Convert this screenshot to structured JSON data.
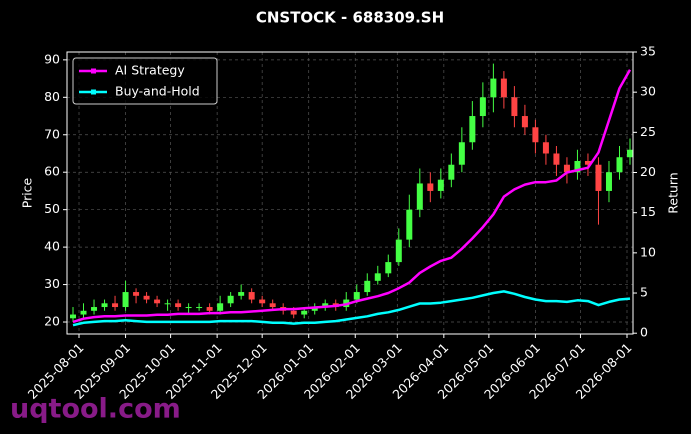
{
  "chart_data": {
    "type": "candlestick",
    "title": "CNSTOCK - 688309.SH",
    "watermark": "uqtool.com",
    "ylabel": "Price",
    "y2label": "Return",
    "x": [
      "2025-07-28",
      "2025-08-04",
      "2025-08-11",
      "2025-08-18",
      "2025-08-25",
      "2025-09-01",
      "2025-09-08",
      "2025-09-15",
      "2025-09-22",
      "2025-09-29",
      "2025-10-06",
      "2025-10-13",
      "2025-10-20",
      "2025-10-27",
      "2025-11-03",
      "2025-11-10",
      "2025-11-17",
      "2025-11-24",
      "2025-12-01",
      "2025-12-08",
      "2025-12-15",
      "2025-12-22",
      "2025-12-29",
      "2026-01-05",
      "2026-01-12",
      "2026-01-19",
      "2026-01-26",
      "2026-02-02",
      "2026-02-09",
      "2026-02-16",
      "2026-02-23",
      "2026-03-02",
      "2026-03-09",
      "2026-03-16",
      "2026-03-23",
      "2026-03-30",
      "2026-04-06",
      "2026-04-13",
      "2026-04-20",
      "2026-04-27",
      "2026-05-04",
      "2026-05-11",
      "2026-05-18",
      "2026-05-25",
      "2026-06-01",
      "2026-06-08",
      "2026-06-15",
      "2026-06-22",
      "2026-06-29",
      "2026-07-06",
      "2026-07-13",
      "2026-07-20",
      "2026-07-27",
      "2026-08-03"
    ],
    "open": [
      21,
      22,
      23,
      24,
      25,
      24,
      28,
      27,
      26,
      25,
      25,
      24,
      24,
      24,
      23,
      25,
      27,
      28,
      26,
      25,
      24,
      23,
      22,
      23,
      24,
      25,
      24,
      26,
      28,
      31,
      33,
      36,
      42,
      50,
      57,
      55,
      58,
      62,
      68,
      75,
      80,
      85,
      80,
      75,
      72,
      68,
      65,
      62,
      60,
      63,
      62,
      55,
      60,
      64
    ],
    "high": [
      24,
      25,
      26,
      26,
      27,
      31,
      29,
      28,
      27,
      26,
      26,
      25,
      25,
      25,
      27,
      28,
      30,
      29,
      27,
      26,
      25,
      24,
      24,
      25,
      26,
      26,
      28,
      30,
      33,
      35,
      38,
      45,
      54,
      61,
      60,
      61,
      65,
      72,
      79,
      84,
      89,
      87,
      83,
      78,
      74,
      70,
      67,
      64,
      66,
      65,
      64,
      63,
      67,
      69
    ],
    "low": [
      20,
      21,
      22,
      23,
      23,
      23,
      25,
      25,
      24,
      23,
      23,
      22,
      23,
      22,
      22,
      24,
      26,
      25,
      24,
      23,
      22,
      21,
      21,
      22,
      23,
      23,
      23,
      25,
      27,
      30,
      32,
      35,
      40,
      48,
      52,
      53,
      56,
      60,
      66,
      72,
      76,
      77,
      72,
      70,
      65,
      62,
      59,
      57,
      58,
      59,
      46,
      52,
      58,
      62
    ],
    "close": [
      22,
      23,
      24,
      25,
      24,
      28,
      27,
      26,
      25,
      25,
      24,
      24,
      24,
      23,
      25,
      27,
      28,
      26,
      25,
      24,
      23,
      22,
      23,
      24,
      25,
      24,
      26,
      28,
      31,
      33,
      36,
      42,
      50,
      57,
      55,
      58,
      62,
      68,
      75,
      80,
      85,
      80,
      75,
      72,
      68,
      65,
      62,
      60,
      63,
      62,
      55,
      60,
      64,
      66
    ],
    "up_color": "#44ff44",
    "down_color": "#ff4444",
    "series": [
      {
        "name": "AI Strategy",
        "color": "#ff00ff",
        "axis": "y2",
        "values": [
          1.4,
          1.8,
          2.0,
          2.1,
          2.1,
          2.2,
          2.2,
          2.2,
          2.3,
          2.3,
          2.4,
          2.4,
          2.4,
          2.5,
          2.5,
          2.6,
          2.6,
          2.7,
          2.8,
          2.9,
          3.0,
          3.0,
          3.1,
          3.2,
          3.3,
          3.4,
          3.6,
          4.0,
          4.3,
          4.6,
          5.0,
          5.6,
          6.3,
          7.5,
          8.3,
          9.0,
          9.4,
          10.5,
          11.8,
          13.2,
          14.8,
          17.0,
          17.9,
          18.5,
          18.8,
          18.8,
          19.0,
          20.0,
          20.3,
          20.6,
          22.5,
          26.5,
          30.5,
          32.8
        ]
      },
      {
        "name": "Buy-and-Hold",
        "color": "#00ffff",
        "axis": "y2",
        "values": [
          1.0,
          1.3,
          1.4,
          1.5,
          1.5,
          1.6,
          1.5,
          1.4,
          1.4,
          1.4,
          1.4,
          1.4,
          1.4,
          1.4,
          1.5,
          1.5,
          1.5,
          1.5,
          1.4,
          1.3,
          1.3,
          1.2,
          1.3,
          1.3,
          1.4,
          1.5,
          1.7,
          1.9,
          2.1,
          2.4,
          2.6,
          2.9,
          3.3,
          3.7,
          3.7,
          3.8,
          4.0,
          4.2,
          4.4,
          4.7,
          5.0,
          5.2,
          4.9,
          4.5,
          4.2,
          4.0,
          4.0,
          3.9,
          4.1,
          4.0,
          3.5,
          3.9,
          4.2,
          4.3
        ]
      }
    ],
    "xlim": [
      "2025-07-24",
      "2026-08-05"
    ],
    "xticks": [
      "2025-08-01",
      "2025-09-01",
      "2025-10-01",
      "2025-11-01",
      "2025-12-01",
      "2026-01-01",
      "2026-02-01",
      "2026-03-01",
      "2026-04-01",
      "2026-05-01",
      "2026-06-01",
      "2026-07-01",
      "2026-08-01"
    ],
    "ylim": [
      16.8,
      92.1
    ],
    "yticks": [
      20,
      30,
      40,
      50,
      60,
      70,
      80,
      90
    ],
    "y2lim": [
      -0.1,
      35
    ],
    "y2ticks": [
      0,
      5,
      10,
      15,
      20,
      25,
      30,
      35
    ],
    "grid": true,
    "legend": "upper left"
  }
}
